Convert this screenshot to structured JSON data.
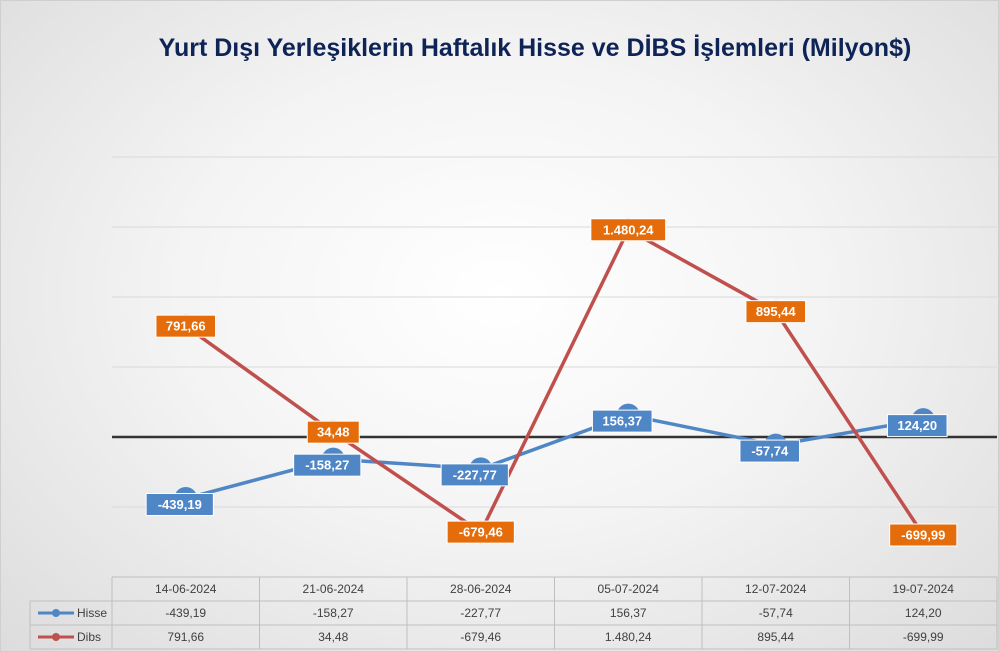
{
  "chart_data": {
    "type": "line",
    "title": "Yurt Dışı Yerleşiklerin Haftalık Hisse ve DİBS İşlemleri (Milyon$)",
    "categories": [
      "14-06-2024",
      "21-06-2024",
      "28-06-2024",
      "05-07-2024",
      "12-07-2024",
      "19-07-2024"
    ],
    "series": [
      {
        "name": "Hisse",
        "values": [
          -439.19,
          -158.27,
          -227.77,
          156.37,
          -57.74,
          124.2
        ],
        "labels": [
          "-439,19",
          "-158,27",
          "-227,77",
          "156,37",
          "-57,74",
          "124,20"
        ],
        "color": "#4f86c6",
        "label_bg": "#4f86c6"
      },
      {
        "name": "Dibs",
        "values": [
          791.66,
          34.48,
          -679.46,
          1480.24,
          895.44,
          -699.99
        ],
        "labels": [
          "791,66",
          "34,48",
          "-679,46",
          "1.480,24",
          "895,44",
          "-699,99"
        ],
        "color": "#c0504d",
        "label_bg": "#e46c0a"
      }
    ],
    "ylim": [
      -1000,
      2000
    ],
    "grid": true,
    "legend": "data-table",
    "zero_line_color": "#333333"
  }
}
